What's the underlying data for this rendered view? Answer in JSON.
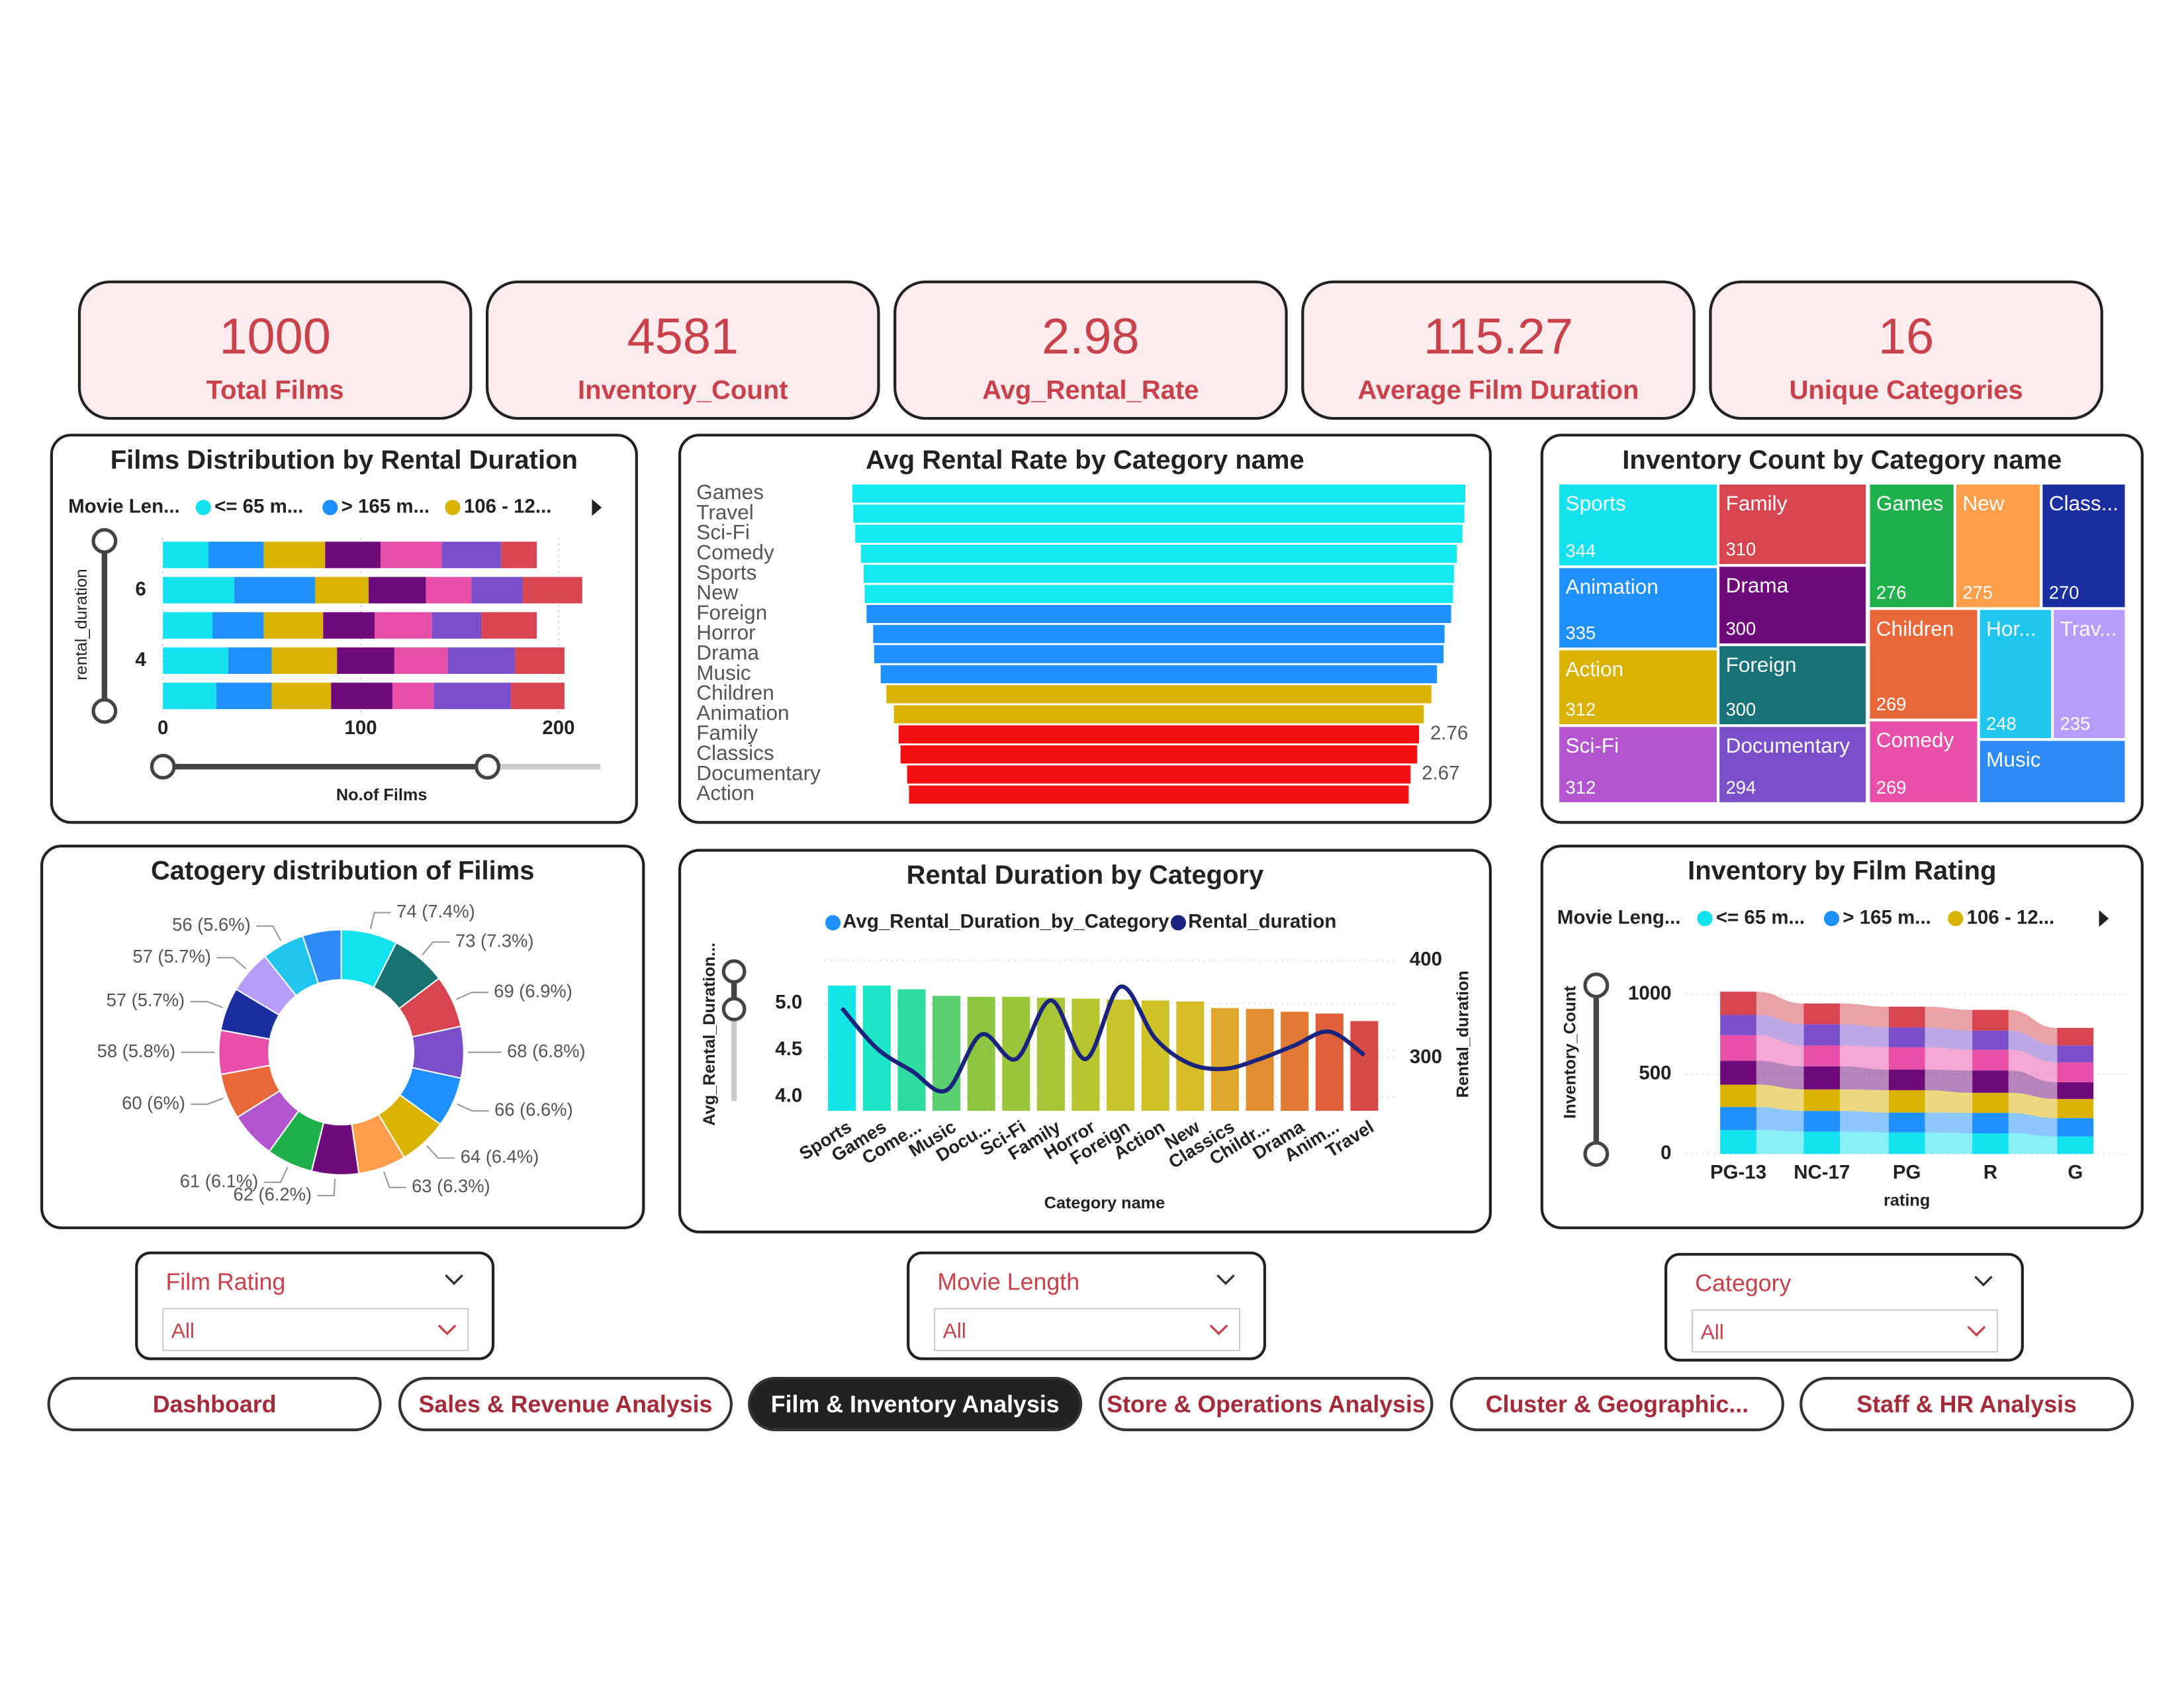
{
  "kpis": [
    {
      "value": 1000,
      "label": "Total Films"
    },
    {
      "value": 4581,
      "label": "Inventory_Count"
    },
    {
      "value": 2.98,
      "label": "Avg_Rental_Rate"
    },
    {
      "value": 115.27,
      "label": "Average Film Duration"
    },
    {
      "value": 16,
      "label": "Unique Categories"
    }
  ],
  "chart_data": [
    {
      "type": "bar",
      "orientation": "horizontal",
      "stacked": true,
      "title": "Films Distribution by Rental Duration",
      "legend_title": "Movie Len...",
      "categories": [
        null,
        6,
        null,
        4,
        null
      ],
      "xlabel": "No.of Films",
      "ylabel": "rental_duration",
      "xlim": [
        0,
        200
      ],
      "xticks": [
        0,
        100,
        200
      ],
      "grid": true,
      "series": [
        {
          "name": "<= 65 m...",
          "color": "#12E2EE",
          "values": [
            23,
            36,
            25,
            33,
            27
          ]
        },
        {
          "name": "> 165 m...",
          "color": "#1E90FF",
          "values": [
            28,
            41,
            26,
            22,
            28
          ]
        },
        {
          "name": "106 - 12...",
          "color": "#D9B300",
          "values": [
            31,
            27,
            30,
            33,
            30
          ]
        },
        {
          "name": null,
          "color": "#6F0A7A",
          "values": [
            28,
            29,
            26,
            29,
            31
          ]
        },
        {
          "name": null,
          "color": "#E84FA8",
          "values": [
            31,
            23,
            29,
            27,
            21
          ]
        },
        {
          "name": null,
          "color": "#7B4FC9",
          "values": [
            30,
            26,
            25,
            34,
            39
          ]
        },
        {
          "name": null,
          "color": "#D64550",
          "values": [
            18,
            30,
            28,
            25,
            27
          ]
        }
      ]
    },
    {
      "type": "funnel",
      "title": "Avg Rental Rate by Category name",
      "categories": [
        "Games",
        "Travel",
        "Sci-Fi",
        "Comedy",
        "Sports",
        "New",
        "Foreign",
        "Horror",
        "Drama",
        "Music",
        "Children",
        "Animation",
        "Family",
        "Classics",
        "Documentary",
        "Action"
      ],
      "values": [
        3.25,
        3.24,
        3.22,
        3.16,
        3.13,
        3.12,
        3.1,
        3.03,
        3.02,
        2.95,
        2.89,
        2.81,
        2.76,
        2.74,
        2.67,
        2.65
      ],
      "value_labels": [
        null,
        null,
        null,
        null,
        null,
        null,
        null,
        null,
        null,
        null,
        null,
        null,
        "2.76",
        null,
        "2.67",
        null
      ],
      "colors": [
        "#12E9F0",
        "#12E9F0",
        "#12E9F0",
        "#12E9F0",
        "#12E9F0",
        "#12E9F0",
        "#1E90FF",
        "#1E90FF",
        "#1E90FF",
        "#1E90FF",
        "#D9B300",
        "#D9B300",
        "#F20F0F",
        "#F20F0F",
        "#F20F0F",
        "#F20F0F"
      ]
    },
    {
      "type": "treemap",
      "title": "Inventory Count by Category name",
      "categories": [
        "Sports",
        "Family",
        "Games",
        "New",
        "Class...",
        "Animation",
        "Drama",
        "Children",
        "Hor...",
        "Trav...",
        "Action",
        "Foreign",
        "Sci-Fi",
        "Documentary",
        "Comedy",
        "Music"
      ],
      "values": [
        344,
        310,
        276,
        275,
        270,
        335,
        300,
        269,
        248,
        235,
        312,
        300,
        312,
        294,
        269,
        232
      ],
      "value_labels": [
        "344",
        "310",
        "276",
        "275",
        "270",
        "335",
        "300",
        "269",
        "248",
        "235",
        "312",
        "300",
        "312",
        "294",
        "269",
        null
      ],
      "colors": [
        "#12E2EE",
        "#D64550",
        "#1FAF4B",
        "#FF9E4A",
        "#1B2EA0",
        "#1E90FF",
        "#6F0A7A",
        "#E8683A",
        "#21C6EE",
        "#B79CFA",
        "#D9B300",
        "#197278",
        "#B455D0",
        "#7B4FC9",
        "#E84FA8",
        "#2E8BF5"
      ]
    },
    {
      "type": "pie",
      "donut": true,
      "title": "Catogery distribution of Filims",
      "values": [
        74,
        73,
        69,
        68,
        66,
        64,
        63,
        62,
        61,
        61,
        60,
        58,
        57,
        57,
        56,
        51
      ],
      "value_labels": [
        "74 (7.4%)",
        "73 (7.3%)",
        "69 (6.9%)",
        "68 (6.8%)",
        "66 (6.6%)",
        "64 (6.4%)",
        "63 (6.3%)",
        "62 (6.2%)",
        "61 (6.1%)",
        null,
        "60 (6%)",
        "58 (5.8%)",
        "57 (5.7%)",
        "57 (5.7%)",
        "56 (5.6%)",
        null
      ],
      "colors": [
        "#12E2EE",
        "#1A7373",
        "#D64550",
        "#7B4FC9",
        "#1E90FF",
        "#D9B300",
        "#FF9E4A",
        "#6F0A7A",
        "#1FAF4B",
        "#B455D0",
        "#E8683A",
        "#E84FA8",
        "#1B2EA0",
        "#B79CFA",
        "#21C6EE",
        "#2E8BF5"
      ]
    },
    {
      "type": "combo",
      "title": "Rental Duration by Category",
      "categories": [
        "Sports",
        "Games",
        "Come...",
        "Music",
        "Docu...",
        "Sci-Fi",
        "Family",
        "Horror",
        "Foreign",
        "Action",
        "New",
        "Classics",
        "Childr...",
        "Drama",
        "Anim...",
        "Travel"
      ],
      "xlabel": "Category name",
      "ylabel": "Avg_Rental_Duration...",
      "y2label": "Rental_duration",
      "ylim": [
        3.85,
        5.46
      ],
      "yticks": [
        {
          "value": 4,
          "label": "4.0"
        },
        4.5,
        {
          "value": 5,
          "label": "5.0"
        }
      ],
      "y2lim": [
        246,
        400
      ],
      "y2ticks": [
        300,
        400
      ],
      "grid": true,
      "series": [
        {
          "name": "Avg_Rental_Duration_by_Category",
          "type": "bar",
          "color": "#1E90FF",
          "colors": [
            "#12E6E6",
            "#1DE5C8",
            "#2EDB9E",
            "#5BD070",
            "#8CC540",
            "#9CC63A",
            "#A8C636",
            "#B9C52E",
            "#C6C42A",
            "#CFC228",
            "#D6BC26",
            "#DDA82C",
            "#E08E30",
            "#E27A35",
            "#E0603A",
            "#D84A45"
          ],
          "values": [
            5.19,
            5.19,
            5.15,
            5.08,
            5.07,
            5.07,
            5.06,
            5.05,
            5.04,
            5.03,
            5.02,
            4.95,
            4.94,
            4.91,
            4.89,
            4.81
          ]
        },
        {
          "name": "Rental_duration",
          "type": "line",
          "axis": "y2",
          "color": "#1A237E",
          "values": [
            351,
            310,
            287,
            267,
            324,
            299,
            359,
            299,
            373,
            320,
            294,
            289,
            299,
            313,
            327,
            303
          ]
        }
      ]
    },
    {
      "type": "ribbon",
      "title": "Inventory by Film Rating",
      "legend_title": "Movie Leng...",
      "categories": [
        "PG-13",
        "NC-17",
        "PG",
        "R",
        "G"
      ],
      "xlabel": "rating",
      "ylabel": "Inventory_Count",
      "ylim": [
        0,
        1040
      ],
      "yticks": [
        0,
        500,
        1000
      ],
      "grid": true,
      "series": [
        {
          "name": "<= 65 m...",
          "color": "#12E2EE",
          "values": [
            150,
            140,
            135,
            130,
            110
          ]
        },
        {
          "name": "> 165 m...",
          "color": "#1E90FF",
          "values": [
            145,
            130,
            125,
            128,
            115
          ]
        },
        {
          "name": "106 - 12...",
          "color": "#D9B300",
          "values": [
            140,
            135,
            140,
            126,
            120
          ]
        },
        {
          "name": null,
          "color": "#6F0A7A",
          "values": [
            150,
            145,
            130,
            140,
            105
          ]
        },
        {
          "name": null,
          "color": "#E84FA8",
          "values": [
            160,
            130,
            140,
            130,
            125
          ]
        },
        {
          "name": null,
          "color": "#7B4FC9",
          "values": [
            128,
            134,
            124,
            120,
            106
          ]
        },
        {
          "name": null,
          "color": "#D64550",
          "values": [
            145,
            130,
            130,
            130,
            110
          ]
        }
      ]
    }
  ],
  "filters": [
    {
      "title": "Film Rating",
      "value": "All"
    },
    {
      "title": "Movie Length",
      "value": "All"
    },
    {
      "title": "Category",
      "value": "All"
    }
  ],
  "nav": {
    "tabs": [
      "Dashboard",
      "Sales & Revenue Analysis",
      "Film & Inventory Analysis",
      "Store & Operations Analysis",
      "Cluster & Geographic...",
      "Staff & HR Analysis"
    ],
    "active": 2
  }
}
